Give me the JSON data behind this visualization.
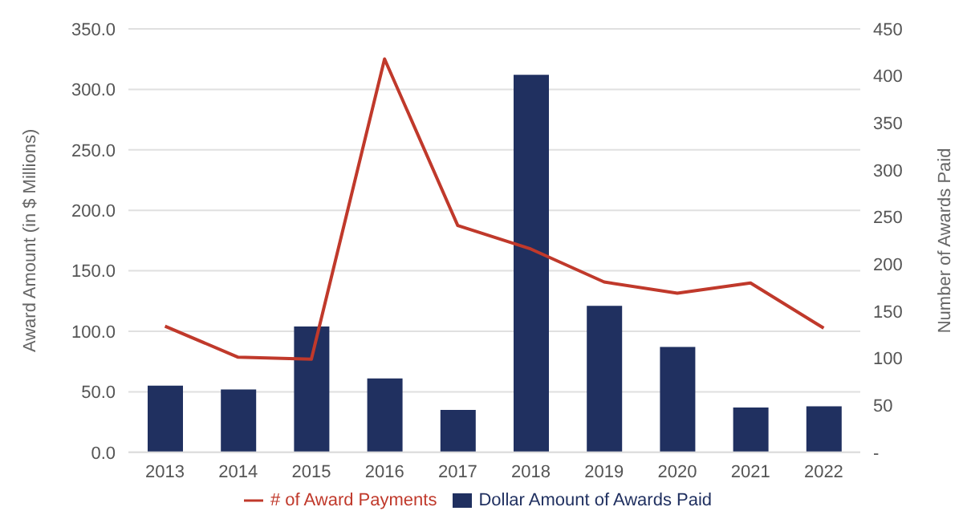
{
  "chart_data": {
    "type": "bar",
    "categories": [
      "2013",
      "2014",
      "2015",
      "2016",
      "2017",
      "2018",
      "2019",
      "2020",
      "2021",
      "2022"
    ],
    "ylabel": "Award Amount (in $ Millions)",
    "y2label": "Number of Awards Paid",
    "series": [
      {
        "name": "Dollar Amount of Awards Paid",
        "color": "#203060",
        "values": [
          55,
          52,
          104,
          61,
          35,
          312,
          121,
          87,
          37,
          38
        ]
      },
      {
        "name": "# of Award Payments",
        "type": "line",
        "axis": "y2",
        "color": "#c0392b",
        "values": [
          134,
          101,
          99,
          418,
          241,
          216,
          181,
          169,
          180,
          132
        ]
      }
    ],
    "ylim": [
      0,
      350
    ],
    "yticks": [
      {
        "value": 0,
        "label": "0.0"
      },
      {
        "value": 50,
        "label": "50.0"
      },
      {
        "value": 100,
        "label": "100.0"
      },
      {
        "value": 150,
        "label": "150.0"
      },
      {
        "value": 200,
        "label": "200.0"
      },
      {
        "value": 250,
        "label": "250.0"
      },
      {
        "value": 300,
        "label": "300.0"
      },
      {
        "value": 350,
        "label": "350.0"
      }
    ],
    "y2lim": [
      0,
      450
    ],
    "y2ticks": [
      {
        "value": 0,
        "label": "-"
      },
      50,
      100,
      150,
      200,
      250,
      300,
      350,
      400,
      450
    ],
    "grid": "y",
    "legend": "bottom",
    "marker": "none"
  }
}
